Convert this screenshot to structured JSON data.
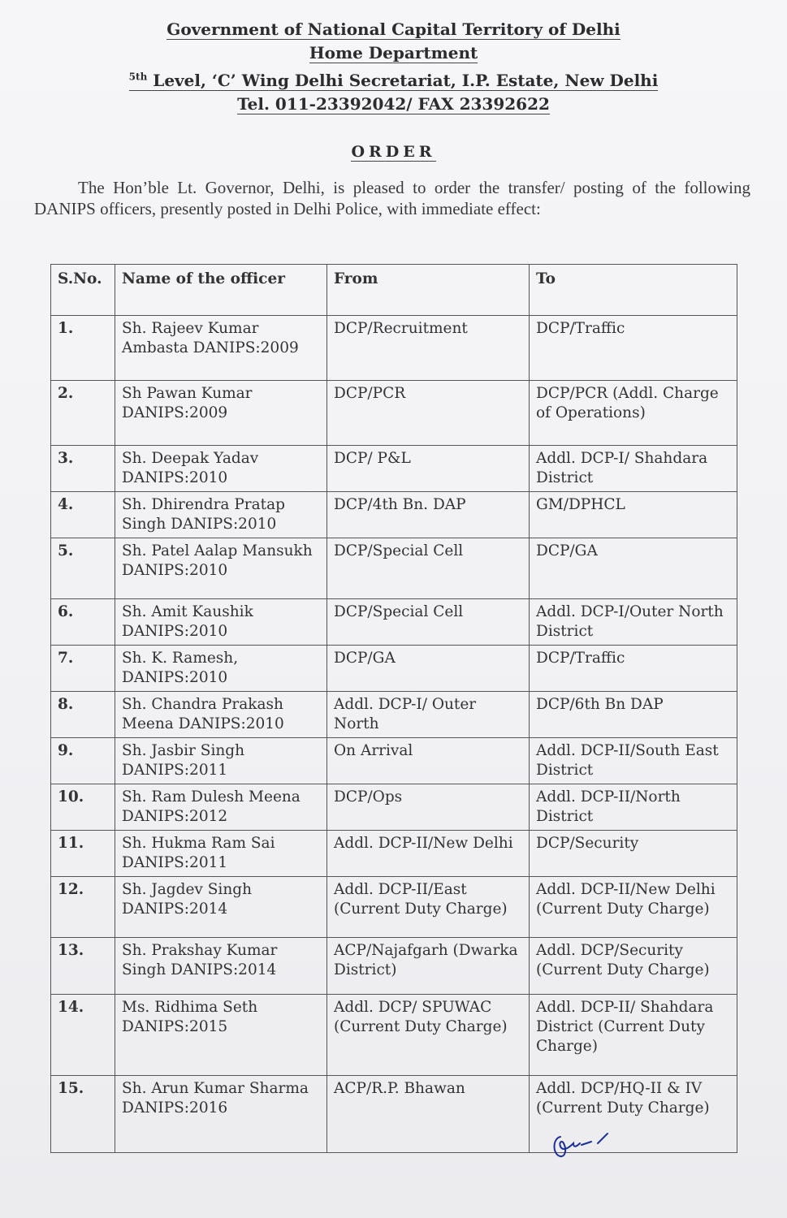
{
  "header": {
    "line1": "Government of National Capital Territory of Delhi",
    "line2": "Home Department",
    "line3_sup": "5th",
    "line3": "Level, ‘C’ Wing Delhi Secretariat, I.P. Estate, New Delhi",
    "line4": "Tel. 011-23392042/ FAX 23392622"
  },
  "title": "ORDER",
  "intro": "The Hon’ble Lt. Governor, Delhi, is pleased to order the transfer/ posting of the following DANIPS officers, presently posted in Delhi Police, with immediate effect:",
  "table": {
    "columns": [
      "S.No.",
      "Name of the officer",
      "From",
      "To"
    ],
    "rows": [
      {
        "sno": "1.",
        "name": "Sh. Rajeev Kumar Ambasta DANIPS:2009",
        "from": "DCP/Recruitment",
        "to": "DCP/Traffic"
      },
      {
        "sno": "2.",
        "name": "Sh Pawan Kumar DANIPS:2009",
        "from": "DCP/PCR",
        "to": "DCP/PCR (Addl. Charge of Operations)"
      },
      {
        "sno": "3.",
        "name": "Sh. Deepak Yadav DANIPS:2010",
        "from": "DCP/ P&L",
        "to": "Addl. DCP-I/ Shahdara District"
      },
      {
        "sno": "4.",
        "name": "Sh. Dhirendra Pratap Singh DANIPS:2010",
        "from": "DCP/4th Bn. DAP",
        "to": "GM/DPHCL"
      },
      {
        "sno": "5.",
        "name": "Sh. Patel Aalap Mansukh DANIPS:2010",
        "from": "DCP/Special Cell",
        "to": "DCP/GA"
      },
      {
        "sno": "6.",
        "name": "Sh. Amit Kaushik DANIPS:2010",
        "from": "DCP/Special Cell",
        "to": "Addl. DCP-I/Outer North District"
      },
      {
        "sno": "7.",
        "name": "Sh. K. Ramesh, DANIPS:2010",
        "from": "DCP/GA",
        "to": "DCP/Traffic"
      },
      {
        "sno": "8.",
        "name": "Sh. Chandra Prakash Meena DANIPS:2010",
        "from": "Addl. DCP-I/ Outer North",
        "to": "DCP/6th Bn DAP"
      },
      {
        "sno": "9.",
        "name": "Sh. Jasbir Singh DANIPS:2011",
        "from": "On Arrival",
        "to": "Addl. DCP-II/South East District"
      },
      {
        "sno": "10.",
        "name": "Sh. Ram Dulesh Meena DANIPS:2012",
        "from": "DCP/Ops",
        "to": "Addl. DCP-II/North District"
      },
      {
        "sno": "11.",
        "name": "Sh. Hukma Ram Sai DANIPS:2011",
        "from": "Addl. DCP-II/New Delhi",
        "to": "DCP/Security"
      },
      {
        "sno": "12.",
        "name": "Sh. Jagdev Singh DANIPS:2014",
        "from": "Addl. DCP-II/East (Current Duty Charge)",
        "to": "Addl. DCP-II/New Delhi (Current Duty Charge)"
      },
      {
        "sno": "13.",
        "name": "Sh. Prakshay Kumar Singh DANIPS:2014",
        "from": "ACP/Najafgarh (Dwarka District)",
        "to": "Addl. DCP/Security (Current Duty Charge)"
      },
      {
        "sno": "14.",
        "name": "Ms. Ridhima Seth DANIPS:2015",
        "from": "Addl. DCP/ SPUWAC (Current Duty Charge)",
        "to": "Addl. DCP-II/ Shahdara District (Current Duty Charge)"
      },
      {
        "sno": "15.",
        "name": "Sh. Arun Kumar Sharma DANIPS:2016",
        "from": "ACP/R.P. Bhawan",
        "to": "Addl. DCP/HQ-II & IV (Current Duty Charge)"
      }
    ]
  },
  "signature": {
    "type": "handwritten-initials",
    "ink_color": "#1b2f9a"
  }
}
